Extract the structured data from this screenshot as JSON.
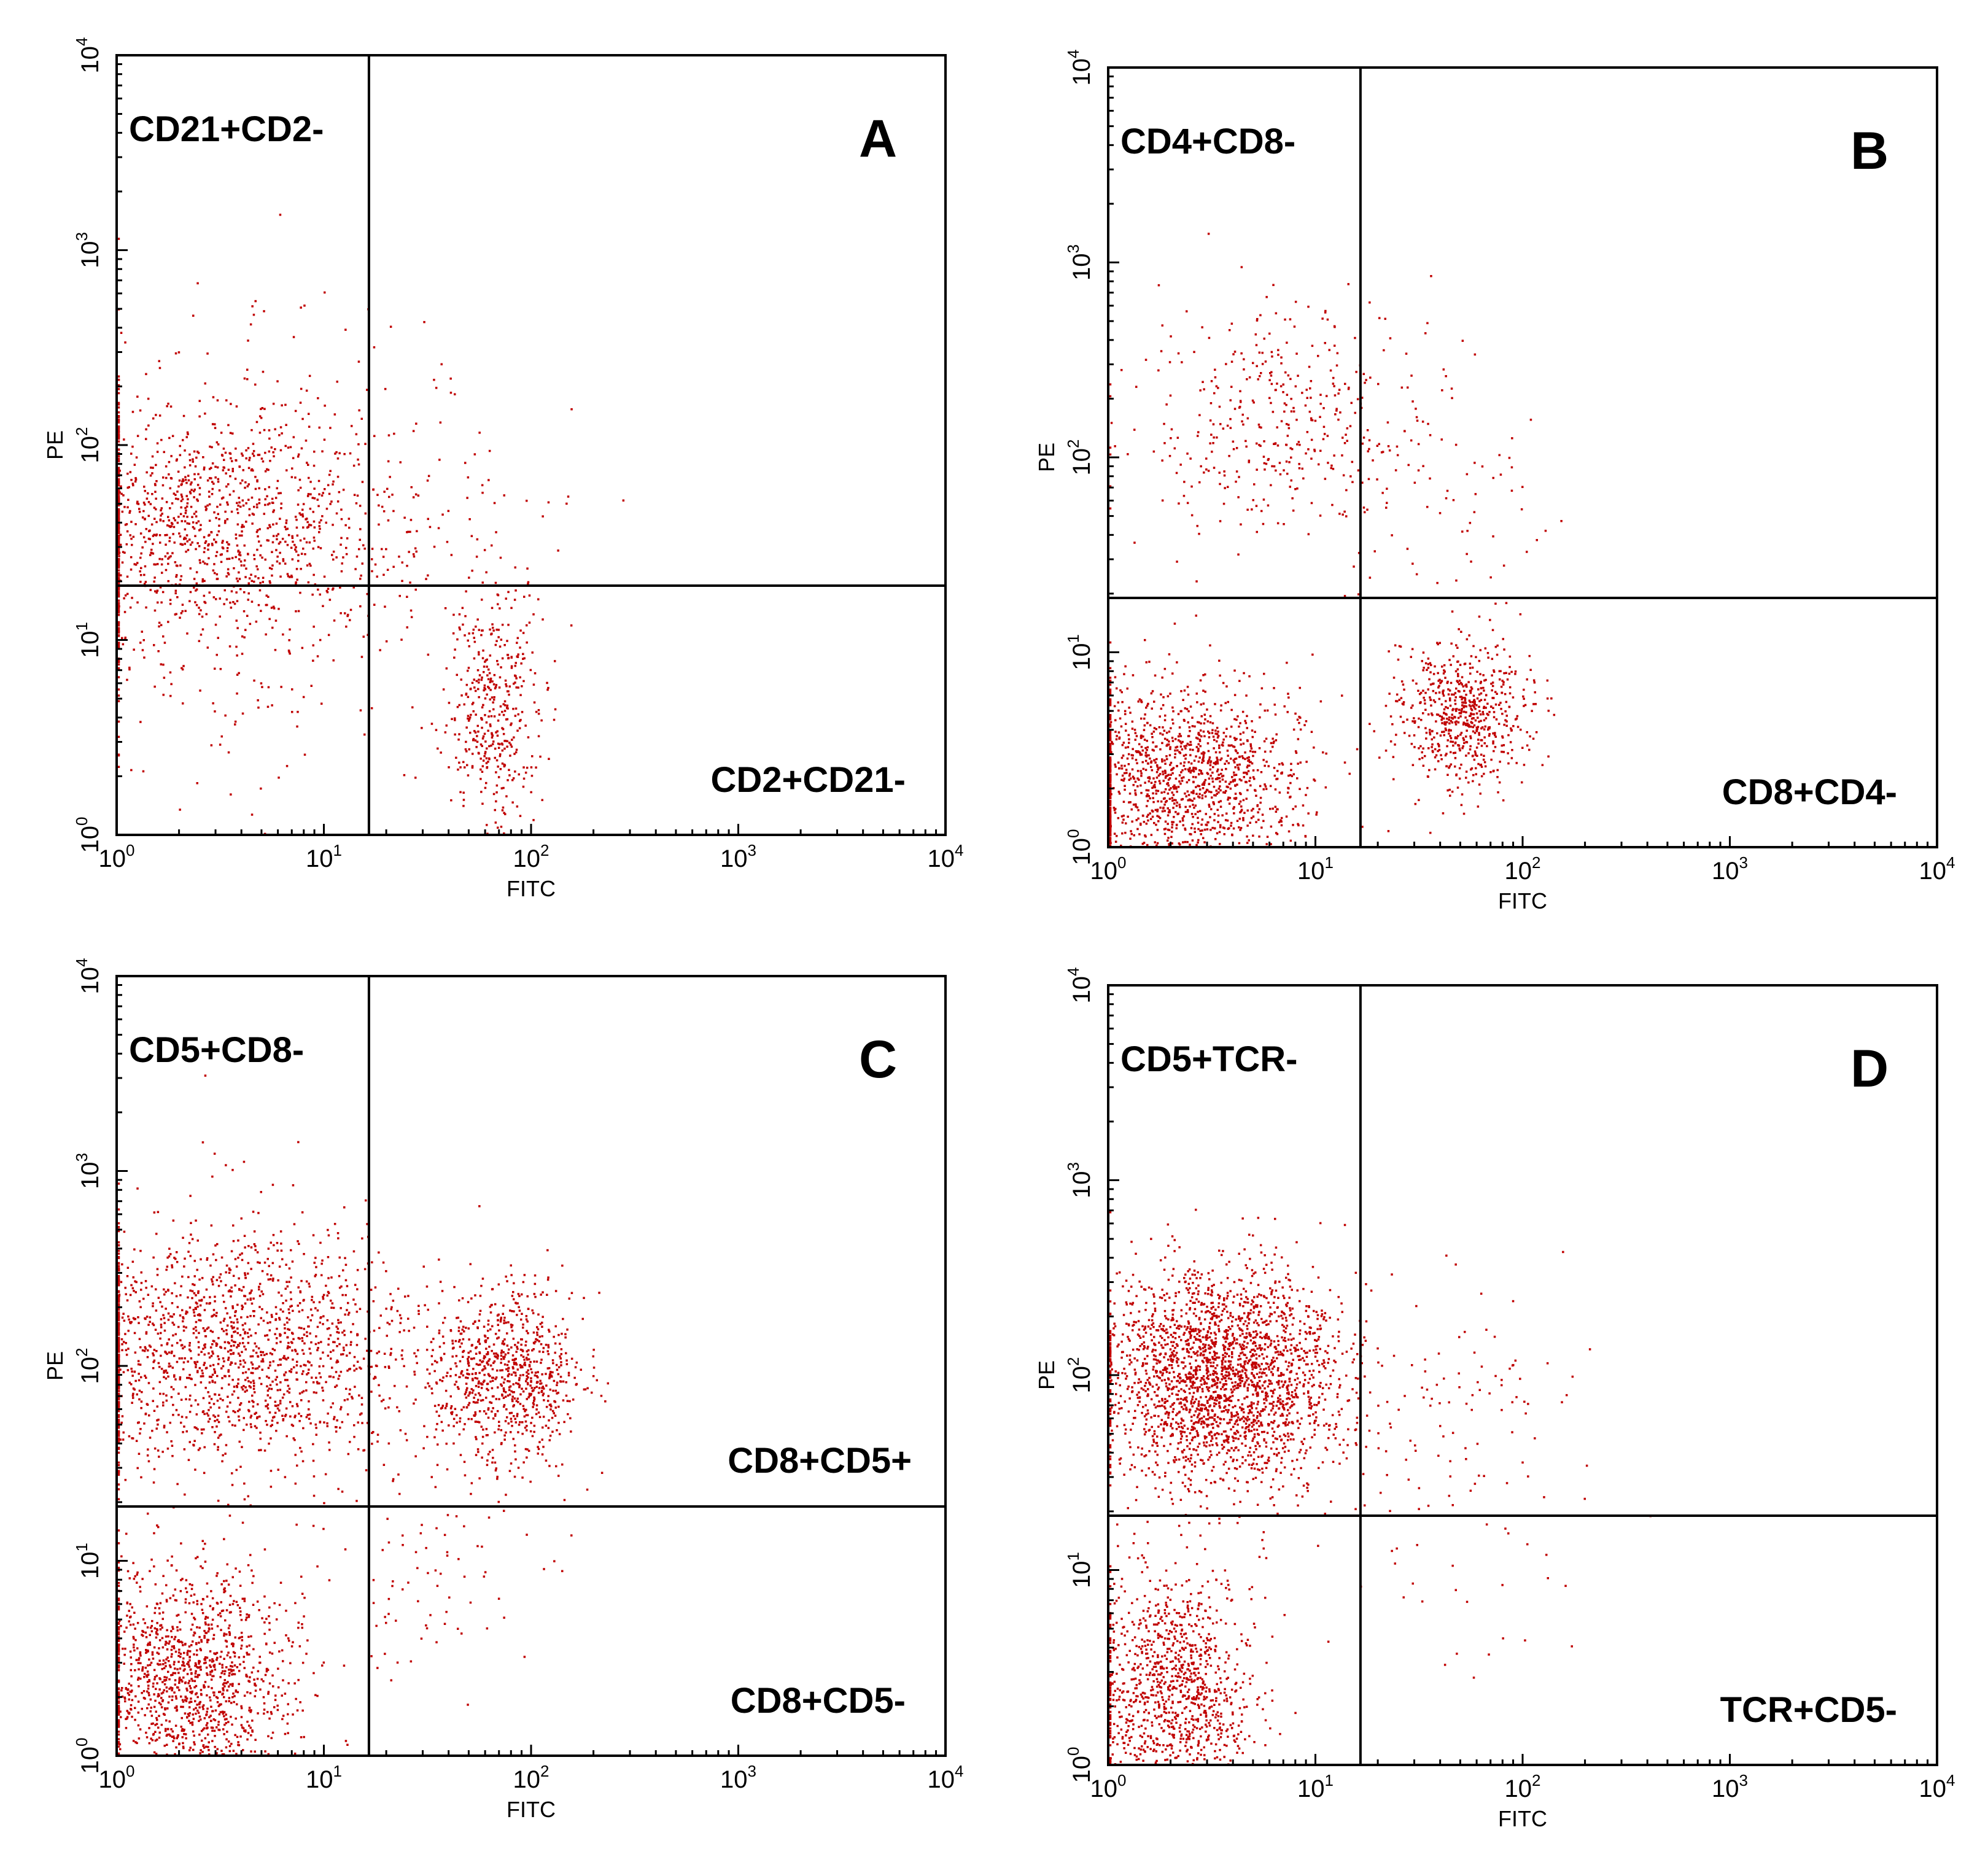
{
  "figure": {
    "background": "#ffffff",
    "dot_color": "#c00000"
  },
  "chart_data": [
    {
      "type": "scatter",
      "panel_label": "A",
      "xlabel": "FITC",
      "ylabel": "PE",
      "xscale": "log",
      "yscale": "log",
      "xlim": [
        1,
        10000
      ],
      "ylim": [
        1,
        10000
      ],
      "tick_base": "10",
      "tick_exponents": [
        "0",
        "1",
        "2",
        "3",
        "4"
      ],
      "gate": {
        "x": 16.5,
        "y": 19
      },
      "quadrant_labels": {
        "upper_left": "CD21+CD2-",
        "lower_right": "CD2+CD21-"
      },
      "label_placement": {
        "upper_left": "top-left",
        "lower_right": "bottom-right"
      },
      "populations": [
        {
          "name": "CD21+CD2- cluster",
          "center": [
            2.8,
            38
          ],
          "spread": [
            0.45,
            0.3
          ],
          "count": 1100
        },
        {
          "name": "upper-left diffuse",
          "center": [
            3.5,
            60
          ],
          "spread": [
            0.6,
            0.55
          ],
          "count": 260
        },
        {
          "name": "CD2+CD21- cluster",
          "center": [
            65,
            4.5
          ],
          "spread": [
            0.12,
            0.3
          ],
          "count": 420
        },
        {
          "name": "upper-right sparse",
          "center": [
            40,
            45
          ],
          "spread": [
            0.3,
            0.3
          ],
          "count": 60
        },
        {
          "name": "lower-left sparse",
          "center": [
            3,
            5
          ],
          "spread": [
            0.5,
            0.35
          ],
          "count": 70
        }
      ]
    },
    {
      "type": "scatter",
      "panel_label": "B",
      "xlabel": "FITC",
      "ylabel": "PE",
      "xscale": "log",
      "yscale": "log",
      "xlim": [
        1,
        10000
      ],
      "ylim": [
        1,
        10000
      ],
      "tick_base": "10",
      "tick_exponents": [
        "0",
        "1",
        "2",
        "3",
        "4"
      ],
      "gate": {
        "x": 16.5,
        "y": 19
      },
      "quadrant_labels": {
        "upper_left": "CD4+CD8-",
        "lower_right": "CD8+CD4-"
      },
      "label_placement": {
        "upper_left": "top-left",
        "lower_right": "bottom-right"
      },
      "populations": [
        {
          "name": "CD4+CD8- cluster",
          "center": [
            7,
            160
          ],
          "spread": [
            0.35,
            0.3
          ],
          "count": 420
        },
        {
          "name": "double-negative cluster",
          "center": [
            2.2,
            2.2
          ],
          "spread": [
            0.3,
            0.25
          ],
          "count": 1400
        },
        {
          "name": "CD8+CD4- cluster",
          "center": [
            50,
            5
          ],
          "spread": [
            0.16,
            0.18
          ],
          "count": 650
        },
        {
          "name": "upper-right sparse",
          "center": [
            45,
            60
          ],
          "spread": [
            0.3,
            0.35
          ],
          "count": 50
        }
      ]
    },
    {
      "type": "scatter",
      "panel_label": "C",
      "xlabel": "FITC",
      "ylabel": "PE",
      "xscale": "log",
      "yscale": "log",
      "xlim": [
        1,
        10000
      ],
      "ylim": [
        1,
        10000
      ],
      "tick_base": "10",
      "tick_exponents": [
        "0",
        "1",
        "2",
        "3",
        "4"
      ],
      "gate": {
        "x": 16.5,
        "y": 19
      },
      "quadrant_labels": {
        "upper_left": "CD5+CD8-",
        "upper_right": "CD8+CD5+",
        "lower_right": "CD8+CD5-"
      },
      "label_placement": {
        "upper_left": "top-left",
        "upper_right": "lower-right of upper-right quadrant",
        "lower_right": "bottom-right"
      },
      "populations": [
        {
          "name": "CD5+CD8- cluster",
          "center": [
            3.5,
            120
          ],
          "spread": [
            0.5,
            0.32
          ],
          "count": 1700
        },
        {
          "name": "CD8+CD5+ cluster",
          "center": [
            75,
            90
          ],
          "spread": [
            0.18,
            0.22
          ],
          "count": 800
        },
        {
          "name": "double-negative cluster",
          "center": [
            2.2,
            2.5
          ],
          "spread": [
            0.25,
            0.3
          ],
          "count": 1300
        },
        {
          "name": "CD8+CD5- sparse",
          "center": [
            35,
            8
          ],
          "spread": [
            0.25,
            0.3
          ],
          "count": 80
        }
      ]
    },
    {
      "type": "scatter",
      "panel_label": "D",
      "xlabel": "FITC",
      "ylabel": "PE",
      "xscale": "log",
      "yscale": "log",
      "xlim": [
        1,
        10000
      ],
      "ylim": [
        1,
        10000
      ],
      "tick_base": "10",
      "tick_exponents": [
        "0",
        "1",
        "2",
        "3",
        "4"
      ],
      "gate": {
        "x": 16.5,
        "y": 19
      },
      "quadrant_labels": {
        "upper_left": "CD5+TCR-",
        "lower_right": "TCR+CD5-"
      },
      "label_placement": {
        "upper_left": "top-left",
        "lower_right": "bottom-right"
      },
      "populations": [
        {
          "name": "CD5+TCR- cluster",
          "center": [
            3.5,
            100
          ],
          "spread": [
            0.28,
            0.28
          ],
          "count": 2400
        },
        {
          "name": "double-negative cluster",
          "center": [
            2.0,
            2.5
          ],
          "spread": [
            0.2,
            0.3
          ],
          "count": 1100
        },
        {
          "name": "upper-right sparse",
          "center": [
            40,
            60
          ],
          "spread": [
            0.35,
            0.35
          ],
          "count": 120
        },
        {
          "name": "lower-right sparse",
          "center": [
            50,
            8
          ],
          "spread": [
            0.3,
            0.25
          ],
          "count": 20
        }
      ]
    }
  ]
}
